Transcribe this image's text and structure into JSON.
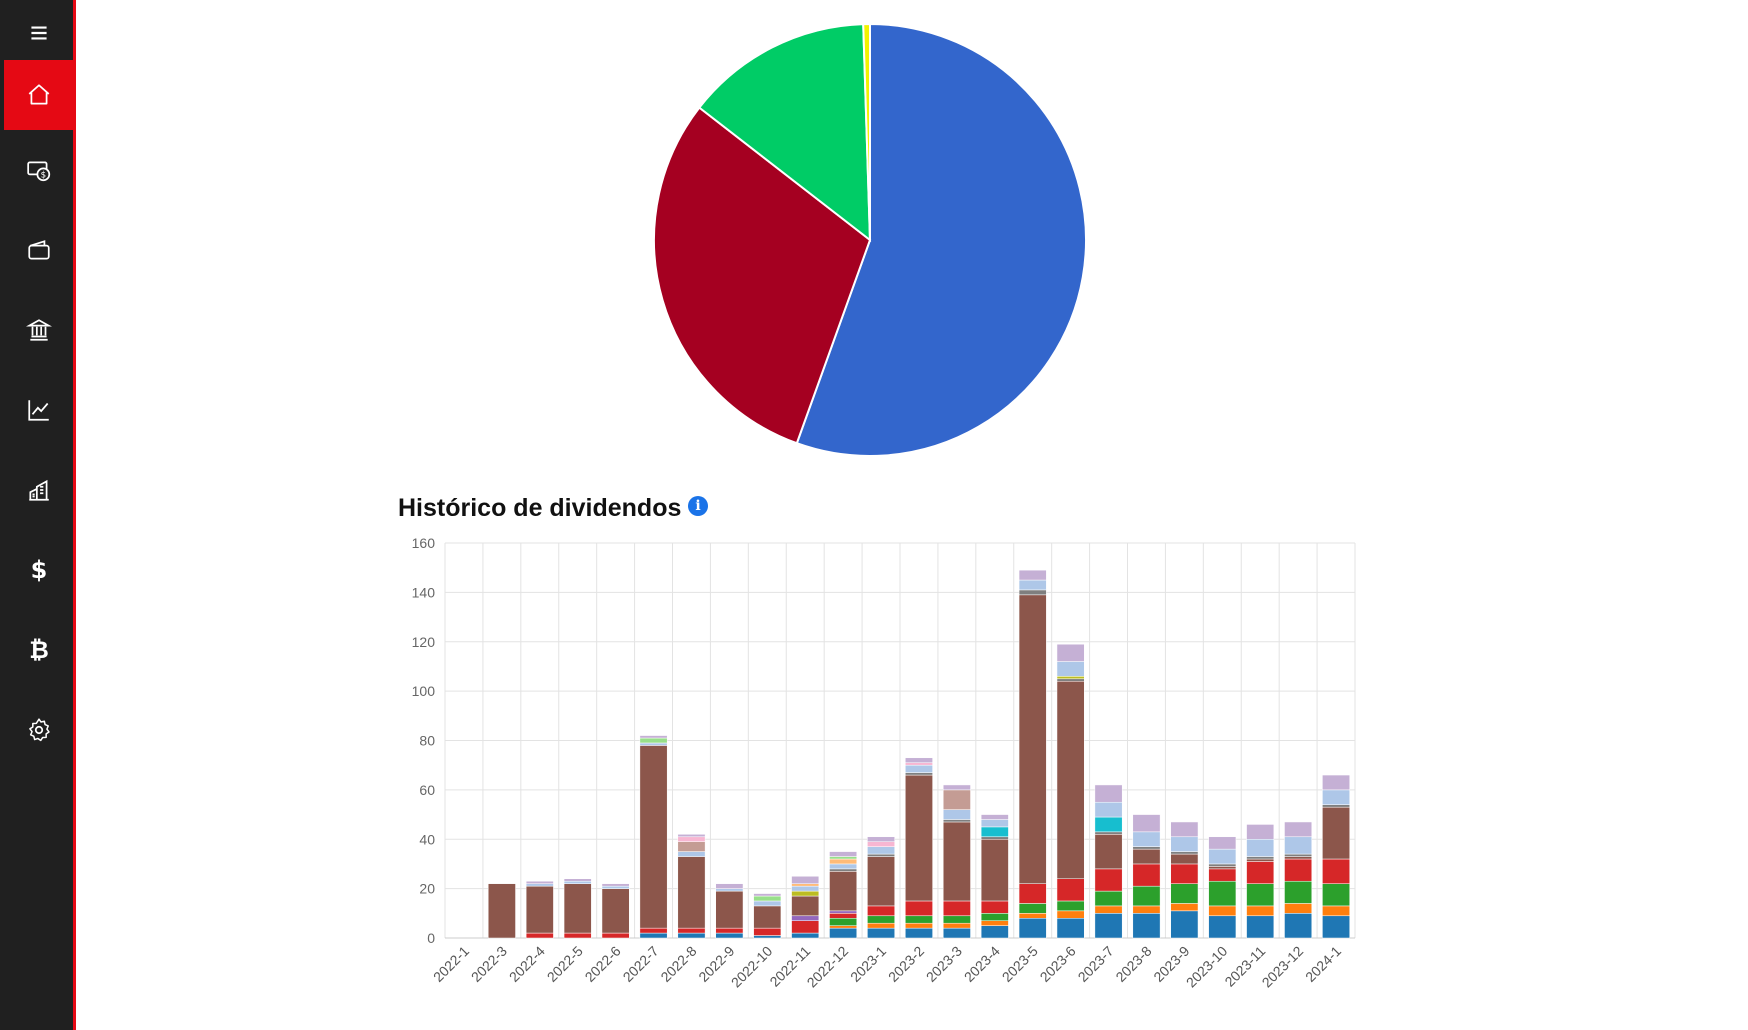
{
  "sidebar": {
    "items": [
      {
        "icon": "home-icon",
        "active": true
      },
      {
        "icon": "money-icon",
        "active": false
      },
      {
        "icon": "wallet-icon",
        "active": false
      },
      {
        "icon": "bank-icon",
        "active": false
      },
      {
        "icon": "line-chart-icon",
        "active": false
      },
      {
        "icon": "buildings-icon",
        "active": false
      },
      {
        "icon": "dollar-icon",
        "active": false,
        "glyph": "$"
      },
      {
        "icon": "bitcoin-icon",
        "active": false,
        "glyph": "₿"
      },
      {
        "icon": "gear-icon",
        "active": false
      }
    ]
  },
  "dividends": {
    "title": "Histórico de dividendos",
    "info_icon": "info-icon"
  },
  "chart_data": [
    {
      "type": "pie",
      "values": [
        55.5,
        30.0,
        14.0,
        0.5
      ],
      "colors": [
        "#3366cc",
        "#a50021",
        "#00cc66",
        "#f2f200"
      ],
      "start_angle": 270
    },
    {
      "type": "bar",
      "stacked": true,
      "title": "Histórico de dividendos",
      "ylim": [
        0,
        160
      ],
      "yticks": [
        0,
        20,
        40,
        60,
        80,
        100,
        120,
        140,
        160
      ],
      "grid": true,
      "categories": [
        "2022-1",
        "2022-3",
        "2022-4",
        "2022-5",
        "2022-6",
        "2022-7",
        "2022-8",
        "2022-9",
        "2022-10",
        "2022-11",
        "2022-12",
        "2023-1",
        "2023-2",
        "2023-3",
        "2023-4",
        "2023-5",
        "2023-6",
        "2023-7",
        "2023-8",
        "2023-9",
        "2023-10",
        "2023-11",
        "2023-12",
        "2024-1"
      ],
      "series": [
        {
          "color": "#1f77b4",
          "values": [
            0,
            0,
            0,
            0,
            0,
            2,
            2,
            2,
            1,
            2,
            4,
            4,
            4,
            4,
            5,
            8,
            8,
            10,
            10,
            11,
            9,
            9,
            10,
            9
          ]
        },
        {
          "color": "#ff7f0e",
          "values": [
            0,
            0,
            0,
            0,
            0,
            0,
            0,
            0,
            0,
            0,
            1,
            2,
            2,
            2,
            2,
            2,
            3,
            3,
            3,
            3,
            4,
            4,
            4,
            4
          ]
        },
        {
          "color": "#2ca02c",
          "values": [
            0,
            0,
            0,
            0,
            0,
            0,
            0,
            0,
            0,
            0,
            3,
            3,
            3,
            3,
            3,
            4,
            4,
            6,
            8,
            8,
            10,
            9,
            9,
            9
          ]
        },
        {
          "color": "#d62728",
          "values": [
            0,
            0,
            2,
            2,
            2,
            2,
            2,
            2,
            3,
            5,
            2,
            4,
            6,
            6,
            5,
            8,
            9,
            9,
            9,
            8,
            5,
            9,
            9,
            10
          ]
        },
        {
          "color": "#9467bd",
          "values": [
            0,
            0,
            0,
            0,
            0,
            0,
            0,
            0,
            0,
            2,
            1,
            0,
            0,
            0,
            0,
            0,
            0,
            0,
            0,
            0,
            0,
            0,
            0,
            0
          ]
        },
        {
          "color": "#8c564b",
          "values": [
            0,
            22,
            19,
            20,
            18,
            74,
            29,
            15,
            9,
            8,
            16,
            20,
            51,
            32,
            25,
            117,
            80,
            14,
            6,
            4,
            1,
            1,
            1,
            21
          ]
        },
        {
          "color": "#7f7f7f",
          "values": [
            0,
            0,
            0,
            0,
            0,
            0,
            0,
            0,
            0,
            0,
            1,
            1,
            1,
            1,
            1,
            2,
            1,
            1,
            1,
            1,
            1,
            1,
            1,
            1
          ]
        },
        {
          "color": "#bcbd22",
          "values": [
            0,
            0,
            0,
            0,
            0,
            0,
            0,
            0,
            0,
            2,
            0,
            0,
            0,
            0,
            0,
            0,
            1,
            0,
            0,
            0,
            0,
            0,
            0,
            0
          ]
        },
        {
          "color": "#17becf",
          "values": [
            0,
            0,
            0,
            0,
            0,
            0,
            0,
            0,
            0,
            0,
            0,
            0,
            0,
            0,
            4,
            0,
            0,
            6,
            0,
            0,
            0,
            0,
            0,
            0
          ]
        },
        {
          "color": "#aec7e8",
          "values": [
            0,
            0,
            1,
            1,
            1,
            1,
            2,
            1,
            2,
            2,
            2,
            3,
            3,
            4,
            3,
            4,
            6,
            6,
            6,
            6,
            6,
            7,
            7,
            6
          ]
        },
        {
          "color": "#ffbb78",
          "values": [
            0,
            0,
            0,
            0,
            0,
            0,
            0,
            0,
            0,
            1,
            2,
            0,
            0,
            0,
            0,
            0,
            0,
            0,
            0,
            0,
            0,
            0,
            0,
            0
          ]
        },
        {
          "color": "#98df8a",
          "values": [
            0,
            0,
            0,
            0,
            0,
            2,
            0,
            0,
            2,
            0,
            1,
            0,
            0,
            0,
            0,
            0,
            0,
            0,
            0,
            0,
            0,
            0,
            0,
            0
          ]
        },
        {
          "color": "#c49c94",
          "values": [
            0,
            0,
            0,
            0,
            0,
            0,
            4,
            0,
            0,
            0,
            0,
            0,
            0,
            8,
            0,
            0,
            0,
            0,
            0,
            0,
            0,
            0,
            0,
            0
          ]
        },
        {
          "color": "#f7b6d2",
          "values": [
            0,
            0,
            0,
            0,
            0,
            0,
            2,
            0,
            0,
            0,
            0,
            2,
            1,
            0,
            0,
            0,
            0,
            0,
            0,
            0,
            0,
            0,
            0,
            0
          ]
        },
        {
          "color": "#c5b0d5",
          "values": [
            0,
            0,
            1,
            1,
            1,
            1,
            1,
            2,
            1,
            3,
            2,
            2,
            2,
            2,
            2,
            4,
            7,
            7,
            7,
            6,
            5,
            6,
            6,
            6
          ]
        }
      ]
    }
  ]
}
